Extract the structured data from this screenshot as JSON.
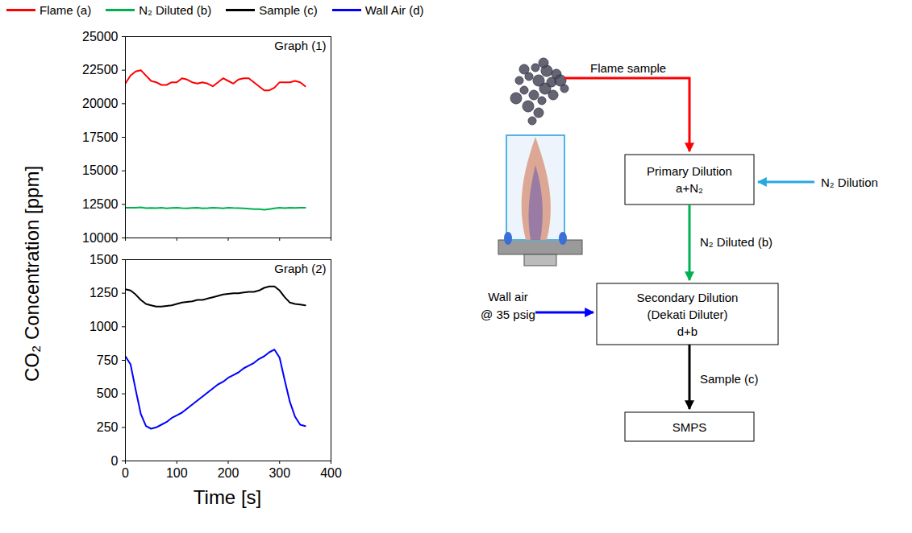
{
  "chart_data": [
    {
      "type": "line",
      "title": "Graph (1)",
      "ylabel": "CO₂ Concentration [ppm]",
      "legend": "top",
      "tick_labels": "y",
      "x": [
        0,
        10,
        20,
        30,
        40,
        50,
        60,
        70,
        80,
        90,
        100,
        110,
        120,
        130,
        140,
        150,
        160,
        170,
        180,
        190,
        200,
        210,
        220,
        230,
        240,
        250,
        260,
        270,
        280,
        290,
        300,
        310,
        320,
        330,
        340,
        350
      ],
      "xlim": [
        0,
        400
      ],
      "xticks": [
        0,
        100,
        200,
        300,
        400
      ],
      "ylim": [
        10000,
        25000
      ],
      "yticks": [
        10000,
        12500,
        15000,
        17500,
        20000,
        22500,
        25000
      ],
      "series": [
        {
          "name": "Flame (a)",
          "color": "#ff0000",
          "values": [
            21500,
            22100,
            22400,
            22500,
            22100,
            21700,
            21600,
            21400,
            21400,
            21600,
            21600,
            21900,
            21800,
            21600,
            21500,
            21600,
            21500,
            21300,
            21600,
            21900,
            21700,
            21500,
            21800,
            21900,
            21900,
            21600,
            21300,
            21000,
            21000,
            21200,
            21600,
            21600,
            21600,
            21700,
            21600,
            21300
          ]
        },
        {
          "name": "N₂ Diluted (b)",
          "color": "#00b050",
          "values": [
            12250,
            12250,
            12250,
            12280,
            12220,
            12230,
            12220,
            12250,
            12200,
            12230,
            12250,
            12220,
            12200,
            12230,
            12250,
            12200,
            12220,
            12250,
            12230,
            12200,
            12250,
            12230,
            12220,
            12200,
            12180,
            12150,
            12150,
            12100,
            12150,
            12200,
            12250,
            12220,
            12250,
            12230,
            12250,
            12250
          ]
        }
      ]
    },
    {
      "type": "line",
      "title": "Graph (2)",
      "xlabel": "Time [s]",
      "x": [
        0,
        10,
        20,
        30,
        40,
        50,
        60,
        70,
        80,
        90,
        100,
        110,
        120,
        130,
        140,
        150,
        160,
        170,
        180,
        190,
        200,
        210,
        220,
        230,
        240,
        250,
        260,
        270,
        280,
        290,
        300,
        310,
        320,
        330,
        340,
        350
      ],
      "xlim": [
        0,
        400
      ],
      "xticks": [
        0,
        100,
        200,
        300,
        400
      ],
      "ylim": [
        0,
        1500
      ],
      "yticks": [
        0,
        250,
        500,
        750,
        1000,
        1250,
        1500
      ],
      "series": [
        {
          "name": "Sample (c)",
          "color": "#000000",
          "values": [
            1280,
            1270,
            1240,
            1200,
            1170,
            1160,
            1150,
            1150,
            1155,
            1160,
            1170,
            1180,
            1185,
            1190,
            1200,
            1200,
            1210,
            1220,
            1230,
            1240,
            1245,
            1250,
            1250,
            1255,
            1260,
            1260,
            1270,
            1290,
            1300,
            1300,
            1270,
            1220,
            1180,
            1170,
            1165,
            1160
          ]
        },
        {
          "name": "Wall Air (d)",
          "color": "#0000ff",
          "values": [
            780,
            720,
            530,
            350,
            260,
            240,
            250,
            270,
            290,
            320,
            340,
            360,
            390,
            420,
            450,
            480,
            510,
            540,
            570,
            590,
            620,
            640,
            660,
            690,
            710,
            730,
            760,
            780,
            810,
            830,
            770,
            600,
            440,
            330,
            270,
            260
          ]
        }
      ]
    }
  ],
  "diagram": {
    "flame_label": "Flame sample",
    "primary": [
      "Primary Dilution",
      "a+N₂"
    ],
    "n2_input": "N₂ Dilution",
    "primary_out": "N₂ Diluted (b)",
    "secondary": [
      "Secondary Dilution",
      "(Dekati Diluter)",
      "d+b"
    ],
    "wall_input": [
      "Wall air",
      "@ 35 psig"
    ],
    "secondary_out": "Sample (c)",
    "instrument": "SMPS"
  }
}
